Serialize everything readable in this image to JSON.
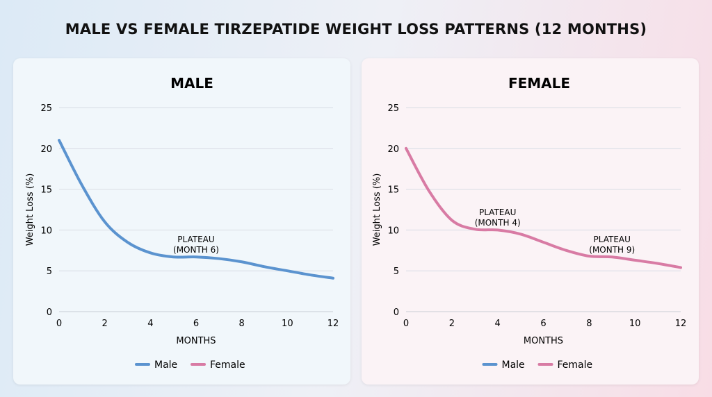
{
  "title": "MALE VS FEMALE TIRZEPATIDE WEIGHT LOSS PATTERNS (12 MONTHS)",
  "colors": {
    "male": "#5b93cf",
    "female": "#d87ba4",
    "grid": "#d8dce4"
  },
  "chart_data": [
    {
      "type": "line",
      "title": "MALE",
      "xlabel": "MONTHS",
      "ylabel": "Weight Loss (%)",
      "xlim": [
        0,
        12
      ],
      "ylim": [
        0,
        25
      ],
      "xticks": [
        0,
        2,
        4,
        6,
        8,
        10,
        12
      ],
      "yticks": [
        0,
        5,
        10,
        15,
        20,
        25
      ],
      "grid": true,
      "legend": "bottom",
      "legend_entries": [
        "Male",
        "Female"
      ],
      "x": [
        0,
        1,
        2,
        3,
        4,
        5,
        6,
        7,
        8,
        9,
        10,
        11,
        12
      ],
      "series": [
        {
          "name": "Male",
          "color": "#5b93cf",
          "values": [
            21,
            15.5,
            11,
            8.5,
            7.2,
            6.7,
            6.7,
            6.5,
            6.1,
            5.5,
            5,
            4.5,
            4.1
          ]
        }
      ],
      "annotations": [
        {
          "text": [
            "PLATEAU",
            "(MONTH 6)"
          ],
          "x": 6,
          "y": 8.5
        }
      ]
    },
    {
      "type": "line",
      "title": "FEMALE",
      "xlabel": "MONTHS",
      "ylabel": "Weight Loss (%)",
      "xlim": [
        0,
        12
      ],
      "ylim": [
        0,
        25
      ],
      "xticks": [
        0,
        2,
        4,
        6,
        8,
        10,
        12
      ],
      "yticks": [
        0,
        5,
        10,
        15,
        20,
        25
      ],
      "grid": true,
      "legend": "bottom",
      "legend_entries": [
        "Male",
        "Female"
      ],
      "x": [
        0,
        1,
        2,
        3,
        4,
        5,
        6,
        7,
        8,
        9,
        10,
        11,
        12
      ],
      "series": [
        {
          "name": "Female",
          "color": "#d87ba4",
          "values": [
            20,
            14.8,
            11.2,
            10.1,
            10,
            9.5,
            8.5,
            7.5,
            6.8,
            6.7,
            6.3,
            5.9,
            5.4
          ]
        }
      ],
      "annotations": [
        {
          "text": [
            "PLATEAU",
            "(MONTH 4)"
          ],
          "x": 4,
          "y": 11.8
        },
        {
          "text": [
            "PLATEAU",
            "(MONTH 9)"
          ],
          "x": 9,
          "y": 8.5
        }
      ]
    }
  ]
}
